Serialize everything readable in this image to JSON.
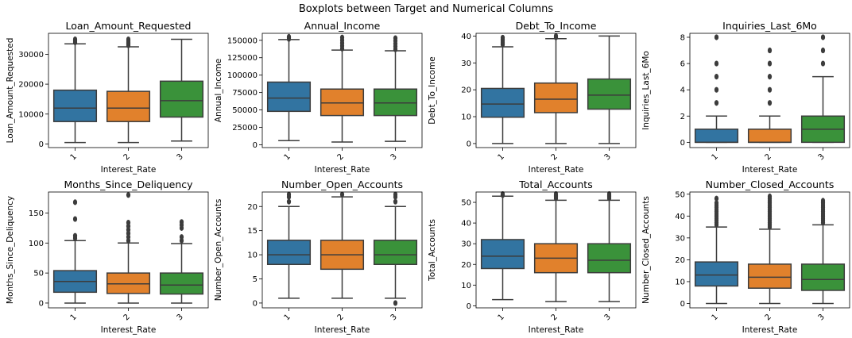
{
  "figure": {
    "title": "Boxplots between Target and Numerical Columns",
    "palette": [
      "#3274a1",
      "#e1812c",
      "#3a923a"
    ],
    "line_color": "#3c3c3c"
  },
  "chart_data": [
    {
      "type": "boxplot",
      "title": "Loan_Amount_Requested",
      "xlabel": "Interest_Rate",
      "ylabel": "Loan_Amount_Requested",
      "categories": [
        "1",
        "2",
        "3"
      ],
      "ylim": [
        -1200,
        37000
      ],
      "yticks": [
        0,
        10000,
        20000,
        30000
      ],
      "boxes": [
        {
          "whislo": 500,
          "q1": 7500,
          "med": 12000,
          "q3": 18000,
          "whishi": 33500,
          "fliers": [
            34000,
            34500,
            35000
          ]
        },
        {
          "whislo": 500,
          "q1": 7500,
          "med": 12000,
          "q3": 17600,
          "whishi": 32500,
          "fliers": [
            33000,
            33500,
            34000,
            34500,
            35000
          ]
        },
        {
          "whislo": 1000,
          "q1": 9000,
          "med": 14500,
          "q3": 21000,
          "whishi": 35000,
          "fliers": []
        }
      ]
    },
    {
      "type": "boxplot",
      "title": "Annual_Income",
      "xlabel": "Interest_Rate",
      "ylabel": "Annual_Income",
      "categories": [
        "1",
        "2",
        "3"
      ],
      "ylim": [
        -4000,
        160000
      ],
      "yticks": [
        0,
        25000,
        50000,
        75000,
        100000,
        125000,
        150000
      ],
      "boxes": [
        {
          "whislo": 6000,
          "q1": 48000,
          "med": 67000,
          "q3": 90000,
          "whishi": 151000,
          "fliers": [
            152000,
            154000,
            155000
          ]
        },
        {
          "whislo": 4000,
          "q1": 42000,
          "med": 60000,
          "q3": 80000,
          "whishi": 136000,
          "fliers": [
            138000,
            142000,
            146000,
            150000,
            154000
          ]
        },
        {
          "whislo": 5000,
          "q1": 42000,
          "med": 60000,
          "q3": 80000,
          "whishi": 135000,
          "fliers": [
            137000,
            141000,
            145000,
            149000,
            153000
          ]
        }
      ]
    },
    {
      "type": "boxplot",
      "title": "Debt_To_Income",
      "xlabel": "Interest_Rate",
      "ylabel": "Debt_To_Income",
      "categories": [
        "1",
        "2",
        "3"
      ],
      "ylim": [
        -1.5,
        41
      ],
      "yticks": [
        0,
        10,
        20,
        30,
        40
      ],
      "boxes": [
        {
          "whislo": 0,
          "q1": 9.8,
          "med": 14.7,
          "q3": 20.5,
          "whishi": 36.0,
          "fliers": [
            36.8,
            37.5,
            38.2,
            38.8,
            39.4
          ]
        },
        {
          "whislo": 0,
          "q1": 11.5,
          "med": 16.5,
          "q3": 22.5,
          "whishi": 39.0,
          "fliers": [
            39.5,
            40.0
          ]
        },
        {
          "whislo": 0,
          "q1": 12.8,
          "med": 18.0,
          "q3": 24.0,
          "whishi": 40.0,
          "fliers": []
        }
      ]
    },
    {
      "type": "boxplot",
      "title": "Inquiries_Last_6Mo",
      "xlabel": "Interest_Rate",
      "ylabel": "Inquiries_Last_6Mo",
      "categories": [
        "1",
        "2",
        "3"
      ],
      "ylim": [
        -0.4,
        8.3
      ],
      "yticks": [
        0,
        2,
        4,
        6,
        8
      ],
      "boxes": [
        {
          "whislo": 0,
          "q1": 0,
          "med": 0,
          "q3": 1,
          "whishi": 2,
          "fliers": [
            3,
            4,
            5,
            6,
            8
          ]
        },
        {
          "whislo": 0,
          "q1": 0,
          "med": 0,
          "q3": 1,
          "whishi": 2,
          "fliers": [
            3,
            4,
            5,
            6,
            7
          ]
        },
        {
          "whislo": 0,
          "q1": 0,
          "med": 1,
          "q3": 2,
          "whishi": 5,
          "fliers": [
            6,
            7,
            8
          ]
        }
      ]
    },
    {
      "type": "boxplot",
      "title": "Months_Since_Deliquency",
      "xlabel": "Interest_Rate",
      "ylabel": "Months_Since_Deliquency",
      "categories": [
        "1",
        "2",
        "3"
      ],
      "ylim": [
        -8,
        185
      ],
      "yticks": [
        0,
        50,
        100,
        150
      ],
      "boxes": [
        {
          "whislo": 0,
          "q1": 18,
          "med": 36,
          "q3": 54,
          "whishi": 104,
          "fliers": [
            108,
            112,
            140,
            168
          ]
        },
        {
          "whislo": 0,
          "q1": 16,
          "med": 32,
          "q3": 50,
          "whishi": 100,
          "fliers": [
            104,
            110,
            116,
            122,
            128,
            134,
            180
          ]
        },
        {
          "whislo": 0,
          "q1": 15,
          "med": 30,
          "q3": 50,
          "whishi": 99,
          "fliers": [
            104,
            110,
            125,
            130,
            135
          ]
        }
      ]
    },
    {
      "type": "boxplot",
      "title": "Number_Open_Accounts",
      "xlabel": "Interest_Rate",
      "ylabel": "Number_Open_Accounts",
      "categories": [
        "1",
        "2",
        "3"
      ],
      "ylim": [
        -1,
        23
      ],
      "yticks": [
        0,
        5,
        10,
        15,
        20
      ],
      "boxes": [
        {
          "whislo": 1,
          "q1": 8,
          "med": 10,
          "q3": 13,
          "whishi": 20,
          "fliers": [
            21,
            22,
            22.5
          ]
        },
        {
          "whislo": 1,
          "q1": 7,
          "med": 10,
          "q3": 13,
          "whishi": 22,
          "fliers": [
            22.5
          ]
        },
        {
          "whislo": 1,
          "q1": 8,
          "med": 10,
          "q3": 13,
          "whishi": 20,
          "fliers": [
            0,
            21,
            22,
            22.5
          ]
        }
      ]
    },
    {
      "type": "boxplot",
      "title": "Total_Accounts",
      "xlabel": "Interest_Rate",
      "ylabel": "Total_Accounts",
      "categories": [
        "1",
        "2",
        "3"
      ],
      "ylim": [
        -1,
        55
      ],
      "yticks": [
        0,
        10,
        20,
        30,
        40,
        50
      ],
      "boxes": [
        {
          "whislo": 3,
          "q1": 18,
          "med": 24,
          "q3": 32,
          "whishi": 53,
          "fliers": [
            53.5,
            54
          ]
        },
        {
          "whislo": 2,
          "q1": 16,
          "med": 23,
          "q3": 30,
          "whishi": 51,
          "fliers": [
            52,
            53,
            54
          ]
        },
        {
          "whislo": 2,
          "q1": 16,
          "med": 22,
          "q3": 30,
          "whishi": 51,
          "fliers": [
            52,
            53,
            54
          ]
        }
      ]
    },
    {
      "type": "boxplot",
      "title": "Number_Closed_Accounts",
      "xlabel": "Interest_Rate",
      "ylabel": "Number_Closed_Accounts",
      "categories": [
        "1",
        "2",
        "3"
      ],
      "ylim": [
        -2,
        51
      ],
      "yticks": [
        0,
        10,
        20,
        30,
        40,
        50
      ],
      "boxes": [
        {
          "whislo": 0,
          "q1": 8,
          "med": 13,
          "q3": 19,
          "whishi": 35,
          "fliers": [
            36,
            37,
            38,
            39,
            40,
            41,
            42,
            43,
            44,
            45,
            46,
            48
          ]
        },
        {
          "whislo": 0,
          "q1": 7,
          "med": 12,
          "q3": 18,
          "whishi": 34,
          "fliers": [
            35,
            36,
            37,
            38,
            39,
            40,
            41,
            42,
            43,
            44,
            45,
            46,
            47,
            48,
            49
          ]
        },
        {
          "whislo": 0,
          "q1": 6,
          "med": 11,
          "q3": 18,
          "whishi": 36,
          "fliers": [
            37,
            38,
            39,
            40,
            41,
            42,
            43,
            44,
            45,
            46,
            47
          ]
        }
      ]
    }
  ]
}
